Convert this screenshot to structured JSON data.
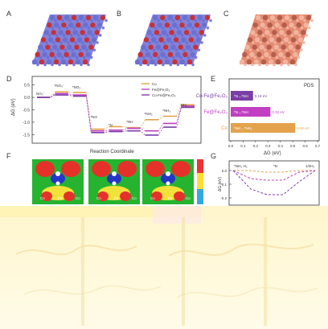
{
  "panels": {
    "a": "A",
    "b": "B",
    "c": "C",
    "d": "D",
    "e": "E",
    "f": "F",
    "g": "G"
  },
  "structure_colors": {
    "a_blue": "#6b6fd1",
    "a_red": "#c6313a",
    "c_salmon": "#e48b72",
    "c_dark": "#b45e4c"
  },
  "f_labels": [
    "Co",
    "Fe",
    "Co"
  ],
  "g_labels": [
    "*NH₃·H₂",
    "*N",
    "1/2H₂"
  ],
  "chart_data": [
    {
      "type": "line",
      "panel": "D",
      "xlabel": "Reaction Coordinate",
      "ylabel": "ΔG (eV)",
      "ylim": [
        -1.75,
        0.75
      ],
      "yticks": [
        "0.5",
        "0.0",
        "-0.5",
        "-1.0",
        "-1.5"
      ],
      "step_labels": [
        "NO₃⁻",
        "*NO₃⁻",
        "*NO₂",
        "*NO",
        "*N",
        "*NH",
        "*NH₂",
        "*NH₃",
        "NH₃"
      ],
      "legend": [
        "Co",
        "Fe@Fe₂O₃",
        "Co-Fe@Fe₂O₃"
      ],
      "series": [
        {
          "name": "Co",
          "color": "#e3a24b",
          "values": [
            0,
            0.22,
            0.2,
            -1.28,
            -1.18,
            -1.22,
            -0.9,
            -0.76,
            -0.3
          ]
        },
        {
          "name": "Fe@Fe₂O₃",
          "color": "#c13fc1",
          "values": [
            0,
            0.15,
            0.1,
            -1.35,
            -1.32,
            -1.25,
            -1.35,
            -1.05,
            -0.35
          ]
        },
        {
          "name": "Co-Fe@Fe₂O₃",
          "color": "#7a3fa6",
          "values": [
            0,
            0.1,
            0.05,
            -1.42,
            -1.38,
            -1.35,
            -1.52,
            -1.2,
            -0.4
          ]
        }
      ]
    },
    {
      "type": "bar",
      "panel": "E",
      "title": "PDS",
      "xlabel": "ΔG (eV)",
      "xlim": [
        0,
        0.7
      ],
      "xticks": [
        "0.0",
        "0.1",
        "0.2",
        "0.3",
        "0.4",
        "0.5",
        "0.6",
        "0.7"
      ],
      "categories": [
        "Co-Fe@Fe₂O₃",
        "Fe@Fe₂O₃",
        "Co"
      ],
      "values": [
        0.18,
        0.32,
        0.52
      ],
      "value_labels": [
        "0.18 eV",
        "0.32 eV",
        "0.52 eV"
      ],
      "step_labels": [
        "*N→*NH",
        "*N→*NH",
        "*NH→*NH₂"
      ],
      "colors": [
        "#7a3fa6",
        "#c13fc1",
        "#e3a24b"
      ]
    },
    {
      "type": "line",
      "panel": "G",
      "ylabel": "ΔG (eV)",
      "yticks": [
        "0.0",
        "-0.1",
        "-0.2"
      ],
      "ylim": [
        -0.25,
        0.05
      ]
    }
  ]
}
